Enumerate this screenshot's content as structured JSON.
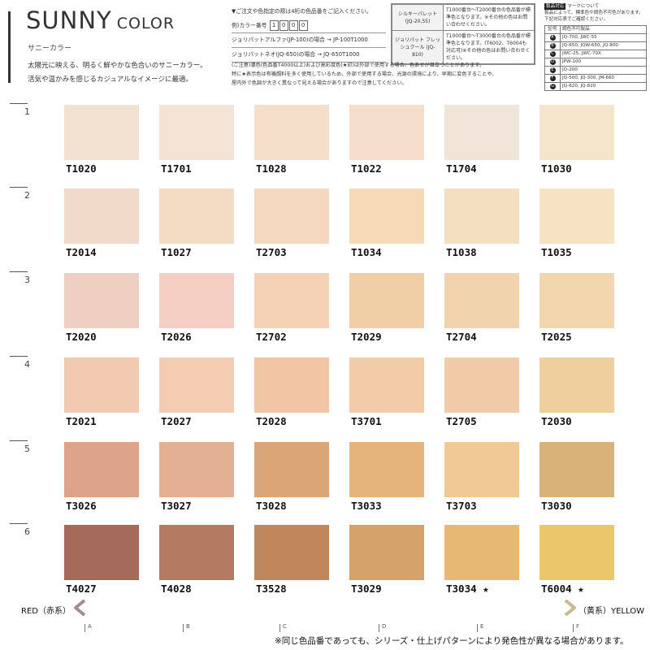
{
  "header": {
    "title_big": "SUNNY",
    "title_small": "COLOR",
    "subtitle_kana": "サニーカラー",
    "intro_lines": [
      "太陽光に映える、明るく鮮やかな色合いのサニーカラー。",
      "活気や温かみを感じるカジュアルなイメージに最適。"
    ]
  },
  "order": {
    "line1": "▼ご注文や色指定の際は4桁の色品番をご記入ください。",
    "example_label": "例)カラー番号",
    "example_digits": [
      "1",
      "0",
      "0",
      "0"
    ],
    "line3": "ジョリパットアルファ(JP-100)の場合 → JP-100T1000",
    "line4": "ジョリパットネオ(JQ-650)の場合 → JQ-650T1000"
  },
  "palettes": [
    {
      "name": "シルキーパレット (JQ-20,55)",
      "desc": "T1000番台〜T2000番台の色品番が標準色となります。※その他の色はお問い合わせください。"
    },
    {
      "name": "ジョリパット フレッシュクール (JQ-810)",
      "desc": "T1000番台〜T3000番台の色品番が標準色となります。(T6002、T6004も対応可)※その他の色はお問い合わせください。"
    }
  ],
  "legend": {
    "tag": "製品対応",
    "note_lines": [
      "マークについて",
      "製品によって、標準色や調色不可色があります。",
      "下記対応表でご確認ください。"
    ],
    "col1": "記号",
    "col2": "調色不可製品",
    "rows": [
      {
        "key": "A",
        "products": "JQ-700, JWC-55"
      },
      {
        "key": "B",
        "products": "JQ-650, JQW-650, JQ-800"
      },
      {
        "key": "C",
        "products": "JWC-25, JWC-70X"
      },
      {
        "key": "D",
        "products": "JPW-100"
      },
      {
        "key": "E",
        "products": "JQ-200"
      },
      {
        "key": "F",
        "products": "JQ-500, JQ-300, JM-660"
      },
      {
        "key": "G",
        "products": "JQ-620, JQ-820"
      }
    ]
  },
  "caution_lines": [
    "(ご注意)濃色(色品番T4000以上)および高彩度色(★印)は外部で使用する場合、色あせが目立つことがあります。",
    "特に★表示色は有機顔料を多く使用しているため、外部で使用する場合、光源の環境により、早期に変色することや、",
    "屋内外で色調が大きく異なって見える場合がありますので注意してください。"
  ],
  "rows": [
    {
      "num": "1",
      "items": [
        {
          "code": "T1020",
          "color": "#f3e1d2"
        },
        {
          "code": "T1701",
          "color": "#f5e3d6"
        },
        {
          "code": "T1028",
          "color": "#f5dfcb"
        },
        {
          "code": "T1022",
          "color": "#f5decb"
        },
        {
          "code": "T1704",
          "color": "#f1e5d9"
        },
        {
          "code": "T1030",
          "color": "#f5e5cb"
        }
      ]
    },
    {
      "num": "2",
      "items": [
        {
          "code": "T2014",
          "color": "#f1dac9"
        },
        {
          "code": "T1027",
          "color": "#f4dcc4"
        },
        {
          "code": "T2703",
          "color": "#f5d8c0"
        },
        {
          "code": "T1034",
          "color": "#f6d9b7"
        },
        {
          "code": "T1038",
          "color": "#f4dfc0"
        },
        {
          "code": "T1035",
          "color": "#f6e3c4"
        }
      ]
    },
    {
      "num": "3",
      "items": [
        {
          "code": "T2020",
          "color": "#f0cfc3"
        },
        {
          "code": "T2026",
          "color": "#f5cfc3"
        },
        {
          "code": "T2702",
          "color": "#f5d2b5"
        },
        {
          "code": "T2029",
          "color": "#f1cfa6"
        },
        {
          "code": "T2704",
          "color": "#f1d3ad"
        },
        {
          "code": "T2025",
          "color": "#f2d6ad"
        }
      ]
    },
    {
      "num": "4",
      "items": [
        {
          "code": "T2021",
          "color": "#f2c9b1"
        },
        {
          "code": "T2027",
          "color": "#f4ccb2"
        },
        {
          "code": "T2028",
          "color": "#f2c5a4"
        },
        {
          "code": "T3701",
          "color": "#f2cba8"
        },
        {
          "code": "T2705",
          "color": "#f1cba7"
        },
        {
          "code": "T2030",
          "color": "#f0cf9f"
        }
      ]
    },
    {
      "num": "5",
      "items": [
        {
          "code": "T3026",
          "color": "#dda48a"
        },
        {
          "code": "T3027",
          "color": "#e4b093"
        },
        {
          "code": "T3028",
          "color": "#dba577"
        },
        {
          "code": "T3033",
          "color": "#e5b47c"
        },
        {
          "code": "T3703",
          "color": "#f0c996"
        },
        {
          "code": "T3030",
          "color": "#d9b27a"
        }
      ]
    },
    {
      "num": "6",
      "items": [
        {
          "code": "T4027",
          "color": "#a66a5a"
        },
        {
          "code": "T4028",
          "color": "#b57b62"
        },
        {
          "code": "T3528",
          "color": "#c1875c"
        },
        {
          "code": "T3029",
          "color": "#d5a26b"
        },
        {
          "code": "T3034 ★",
          "color": "#e7b874"
        },
        {
          "code": "T6004 ★",
          "color": "#ecc66a"
        }
      ]
    }
  ],
  "scale": {
    "red_label": "RED（赤系）",
    "yellow_label": "（黄系）YELLOW",
    "ticks": [
      "A",
      "B",
      "C",
      "D",
      "E",
      "F"
    ],
    "colors": {
      "start": "#a58a9a",
      "end": "#c8b890"
    }
  },
  "footnote": "※同じ色品番であっても、シリーズ・仕上げパターンにより発色性が異なる場合があります。"
}
